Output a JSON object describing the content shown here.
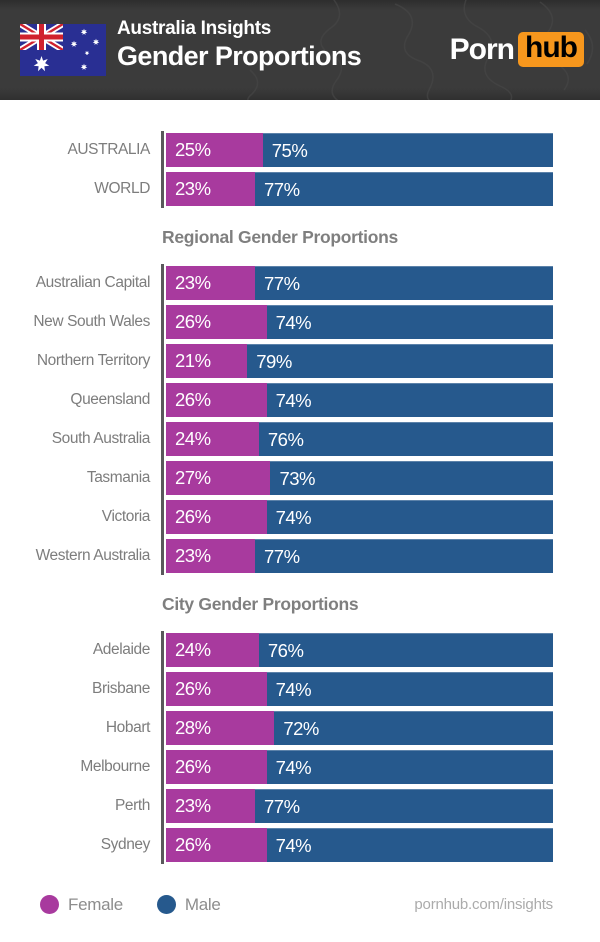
{
  "header": {
    "flag": "australian-flag",
    "title_line1": "Australia Insights",
    "title_line2": "Gender Proportions",
    "logo_part1": "Porn",
    "logo_part2": "hub"
  },
  "colors": {
    "female": "#a83a9e",
    "male": "#26598d",
    "header_bg": "#3b3b3b",
    "logo_orange": "#f7971d",
    "axis": "#59595b",
    "label": "#7d7d7d",
    "heading": "#7f7f7f",
    "legend_text": "#8d8d8d",
    "url_text": "#ababab"
  },
  "chart_data": {
    "type": "bar",
    "orientation": "horizontal",
    "stacked": true,
    "unit": "%",
    "xlim": [
      0,
      100
    ],
    "series_names": [
      "Female",
      "Male"
    ],
    "groups": [
      {
        "title": "",
        "rows": [
          {
            "label": "AUSTRALIA",
            "female": 25,
            "male": 75
          },
          {
            "label": "WORLD",
            "female": 23,
            "male": 77
          }
        ]
      },
      {
        "title": "Regional Gender Proportions",
        "rows": [
          {
            "label": "Australian Capital",
            "female": 23,
            "male": 77
          },
          {
            "label": "New South Wales",
            "female": 26,
            "male": 74
          },
          {
            "label": "Northern Territory",
            "female": 21,
            "male": 79
          },
          {
            "label": "Queensland",
            "female": 26,
            "male": 74
          },
          {
            "label": "South Australia",
            "female": 24,
            "male": 76
          },
          {
            "label": "Tasmania",
            "female": 27,
            "male": 73
          },
          {
            "label": "Victoria",
            "female": 26,
            "male": 74
          },
          {
            "label": "Western Australia",
            "female": 23,
            "male": 77
          }
        ]
      },
      {
        "title": "City Gender Proportions",
        "rows": [
          {
            "label": "Adelaide",
            "female": 24,
            "male": 76
          },
          {
            "label": "Brisbane",
            "female": 26,
            "male": 74
          },
          {
            "label": "Hobart",
            "female": 28,
            "male": 72
          },
          {
            "label": "Melbourne",
            "female": 26,
            "male": 74
          },
          {
            "label": "Perth",
            "female": 23,
            "male": 77
          },
          {
            "label": "Sydney",
            "female": 26,
            "male": 74
          }
        ]
      }
    ]
  },
  "legend": {
    "items": [
      {
        "label": "Female",
        "color": "#a83a9e"
      },
      {
        "label": "Male",
        "color": "#26598d"
      }
    ]
  },
  "footer": {
    "url": "pornhub.com/insights"
  }
}
